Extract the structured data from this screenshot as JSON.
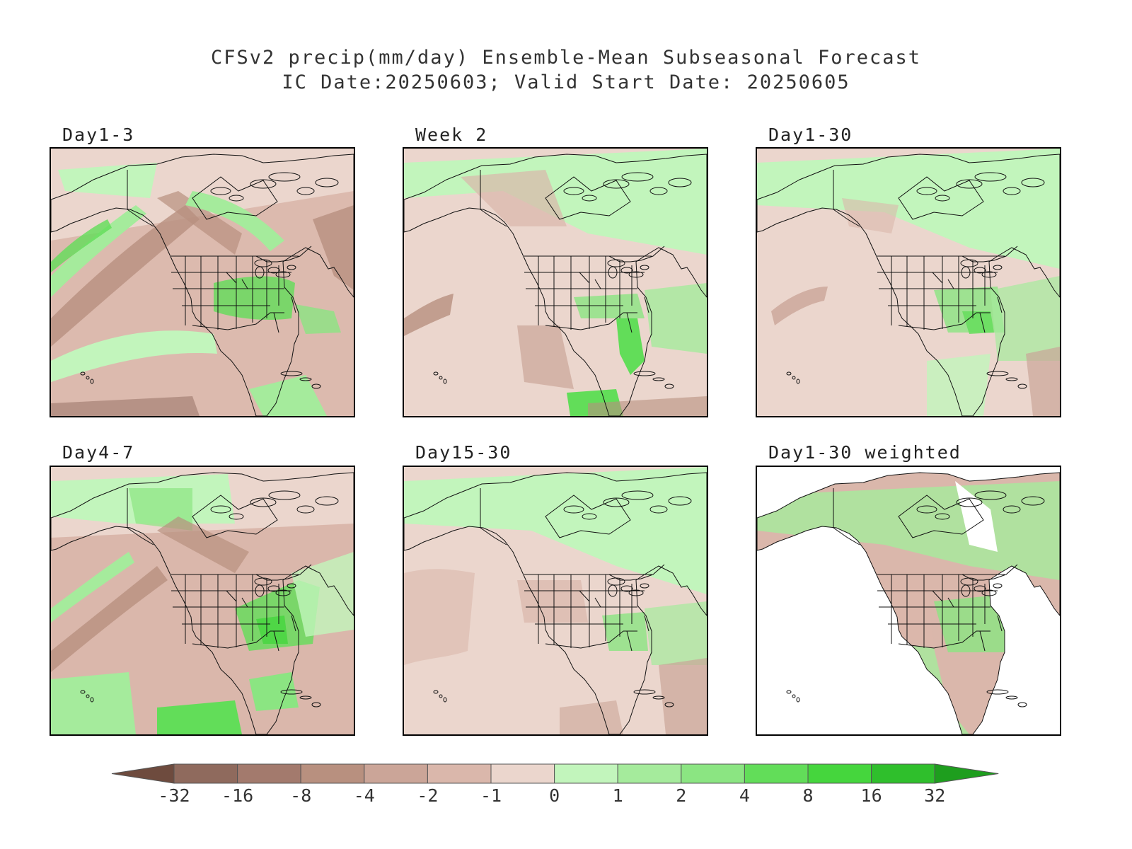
{
  "title": {
    "line1": "CFSv2 precip(mm/day) Ensemble-Mean Subseasonal Forecast",
    "line2": "IC Date:20250603; Valid Start Date: 20250605"
  },
  "panels": [
    {
      "label": "Day1-3",
      "weighted": false
    },
    {
      "label": "Week 2",
      "weighted": false
    },
    {
      "label": "Day1-30",
      "weighted": false
    },
    {
      "label": "Day4-7",
      "weighted": false
    },
    {
      "label": "Day15-30",
      "weighted": false
    },
    {
      "label": "Day1-30 weighted",
      "weighted": true
    }
  ],
  "colorbar": {
    "tick_labels": [
      "-32",
      "-16",
      "-8",
      "-4",
      "-2",
      "-1",
      "0",
      "1",
      "2",
      "4",
      "8",
      "16",
      "32"
    ],
    "colors": [
      "#6e4b3e",
      "#8f6a5d",
      "#a37a6d",
      "#b8907f",
      "#cba598",
      "#dab7ab",
      "#ebd6cd",
      "#c2f5bc",
      "#a5eb9c",
      "#8be582",
      "#62dd59",
      "#45d63d",
      "#2fbf2c",
      "#1e9e1e"
    ]
  }
}
